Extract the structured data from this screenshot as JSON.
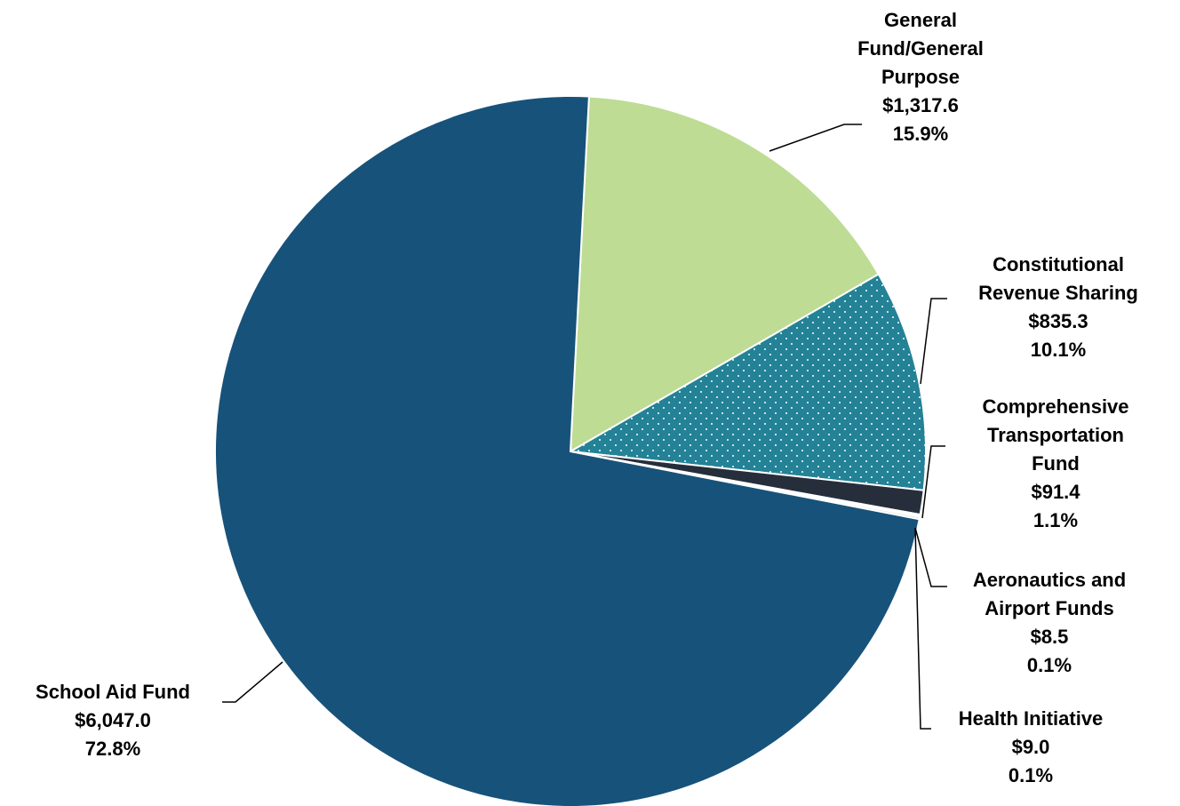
{
  "chart_data": {
    "type": "pie",
    "title": "",
    "unit": "$",
    "slices": [
      {
        "name": "General Fund/General Purpose",
        "label_lines": [
          "General",
          "Fund/General",
          "Purpose"
        ],
        "value": 1317.6,
        "value_text": "$1,317.6",
        "pct_text": "15.9%",
        "color": "#bedc94",
        "pattern": "none"
      },
      {
        "name": "Constitutional Revenue Sharing",
        "label_lines": [
          "Constitutional",
          "Revenue Sharing"
        ],
        "value": 835.3,
        "value_text": "$835.3",
        "pct_text": "10.1%",
        "color": "#238296",
        "pattern": "dots"
      },
      {
        "name": "Comprehensive Transportation Fund",
        "label_lines": [
          "Comprehensive",
          "Transportation",
          "Fund"
        ],
        "value": 91.4,
        "value_text": "$91.4",
        "pct_text": "1.1%",
        "color": "#262e3c",
        "pattern": "none"
      },
      {
        "name": "Aeronautics and Airport Funds",
        "label_lines": [
          "Aeronautics and",
          "Airport Funds"
        ],
        "value": 8.5,
        "value_text": "$8.5",
        "pct_text": "0.1%",
        "color": "#ffffff",
        "pattern": "none"
      },
      {
        "name": "Health Initiative",
        "label_lines": [
          "Health Initiative"
        ],
        "value": 9.0,
        "value_text": "$9.0",
        "pct_text": "0.1%",
        "color": "#d9d9d9",
        "pattern": "none"
      },
      {
        "name": "School Aid Fund",
        "label_lines": [
          "School Aid Fund"
        ],
        "value": 6047.0,
        "value_text": "$6,047.0",
        "pct_text": "72.8%",
        "color": "#17527a",
        "pattern": "none"
      }
    ],
    "start_angle_deg": 3,
    "direction": "clockwise",
    "legend": "none"
  }
}
